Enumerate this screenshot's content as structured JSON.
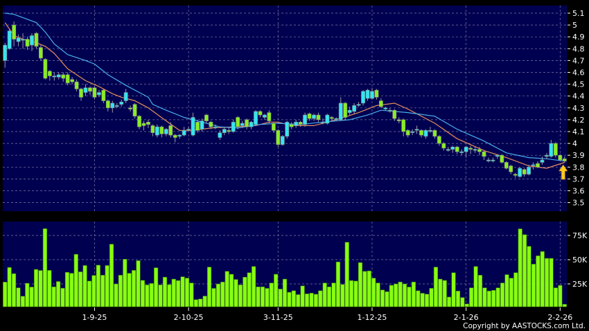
{
  "chart_data": [
    {
      "type": "candlestick",
      "title": "",
      "ylim": [
        3.45,
        5.15
      ],
      "y_ticks": [
        "5.1",
        "5",
        "4.9",
        "4.8",
        "4.7",
        "4.6",
        "4.5",
        "4.4",
        "4.3",
        "4.2",
        "4.1",
        "4",
        "3.9",
        "3.8",
        "3.7",
        "3.6",
        "3.5"
      ],
      "y_axis_position": "right",
      "grid": true,
      "colors": {
        "background": "#000050",
        "up": "#33e6f0",
        "down": "#88ee22",
        "ma_short": "#e8905a",
        "ma_long": "#4ab0f0",
        "grid": "#7a7aa8",
        "marker": "#ffc820"
      },
      "ohlc": [
        [
          4.7,
          4.85,
          4.64,
          4.83
        ],
        [
          4.8,
          4.97,
          4.79,
          4.95
        ],
        [
          5.0,
          5.03,
          4.82,
          4.88
        ],
        [
          4.86,
          4.92,
          4.82,
          4.89
        ],
        [
          4.88,
          4.93,
          4.8,
          4.88
        ],
        [
          4.88,
          4.9,
          4.79,
          4.82
        ],
        [
          4.83,
          4.93,
          4.78,
          4.91
        ],
        [
          4.93,
          4.94,
          4.8,
          4.82
        ],
        [
          4.81,
          4.83,
          4.7,
          4.72
        ],
        [
          4.71,
          4.72,
          4.54,
          4.55
        ],
        [
          4.61,
          4.62,
          4.53,
          4.57
        ],
        [
          4.57,
          4.6,
          4.53,
          4.57
        ],
        [
          4.56,
          4.6,
          4.54,
          4.58
        ],
        [
          4.58,
          4.6,
          4.52,
          4.55
        ],
        [
          4.58,
          4.6,
          4.49,
          4.51
        ],
        [
          4.54,
          4.56,
          4.5,
          4.52
        ],
        [
          4.52,
          4.54,
          4.44,
          4.46
        ],
        [
          4.46,
          4.47,
          4.36,
          4.39
        ],
        [
          4.43,
          4.5,
          4.4,
          4.47
        ],
        [
          4.47,
          4.48,
          4.41,
          4.44
        ],
        [
          4.47,
          4.48,
          4.37,
          4.39
        ],
        [
          4.41,
          4.45,
          4.39,
          4.43
        ],
        [
          4.45,
          4.46,
          4.34,
          4.36
        ],
        [
          4.36,
          4.37,
          4.27,
          4.3
        ],
        [
          4.3,
          4.36,
          4.26,
          4.34
        ],
        [
          4.32,
          4.34,
          4.3,
          4.32
        ],
        [
          4.33,
          4.37,
          4.31,
          4.35
        ],
        [
          4.36,
          4.46,
          4.34,
          4.43
        ],
        [
          4.3,
          4.32,
          4.27,
          4.29
        ],
        [
          4.33,
          4.34,
          4.21,
          4.23
        ],
        [
          4.23,
          4.24,
          4.12,
          4.14
        ],
        [
          4.17,
          4.19,
          4.11,
          4.15
        ],
        [
          4.18,
          4.2,
          4.13,
          4.16
        ],
        [
          4.15,
          4.16,
          4.06,
          4.09
        ],
        [
          4.07,
          4.16,
          4.05,
          4.14
        ],
        [
          4.14,
          4.15,
          4.05,
          4.08
        ],
        [
          4.08,
          4.13,
          4.06,
          4.12
        ],
        [
          4.15,
          4.18,
          4.05,
          4.07
        ],
        [
          4.07,
          4.08,
          4.01,
          4.05
        ],
        [
          4.06,
          4.08,
          4.04,
          4.07
        ],
        [
          4.07,
          4.14,
          4.06,
          4.11
        ],
        [
          4.12,
          4.14,
          4.1,
          4.12
        ],
        [
          4.07,
          4.26,
          4.06,
          4.22
        ],
        [
          4.18,
          4.2,
          4.09,
          4.11
        ],
        [
          4.12,
          4.21,
          4.1,
          4.19
        ],
        [
          4.24,
          4.25,
          4.17,
          4.19
        ],
        [
          4.18,
          4.19,
          4.12,
          4.14
        ],
        [
          4.14,
          4.16,
          4.12,
          4.14
        ],
        [
          4.05,
          4.11,
          4.03,
          4.09
        ],
        [
          4.09,
          4.14,
          4.07,
          4.12
        ],
        [
          4.11,
          4.13,
          4.08,
          4.1
        ],
        [
          4.1,
          4.2,
          4.09,
          4.18
        ],
        [
          4.22,
          4.23,
          4.12,
          4.14
        ],
        [
          4.15,
          4.19,
          4.13,
          4.17
        ],
        [
          4.2,
          4.21,
          4.12,
          4.14
        ],
        [
          4.14,
          4.19,
          4.12,
          4.18
        ],
        [
          4.16,
          4.28,
          4.15,
          4.27
        ],
        [
          4.27,
          4.28,
          4.22,
          4.24
        ],
        [
          4.22,
          4.25,
          4.2,
          4.24
        ],
        [
          4.26,
          4.28,
          4.17,
          4.19
        ],
        [
          4.17,
          4.18,
          4.09,
          4.11
        ],
        [
          4.11,
          4.12,
          3.97,
          3.99
        ],
        [
          3.99,
          4.07,
          3.98,
          4.06
        ],
        [
          4.06,
          4.19,
          4.04,
          4.18
        ],
        [
          4.16,
          4.18,
          4.12,
          4.14
        ],
        [
          4.15,
          4.2,
          4.13,
          4.18
        ],
        [
          4.18,
          4.19,
          4.14,
          4.16
        ],
        [
          4.16,
          4.26,
          4.14,
          4.24
        ],
        [
          4.25,
          4.26,
          4.19,
          4.21
        ],
        [
          4.21,
          4.25,
          4.19,
          4.24
        ],
        [
          4.24,
          4.26,
          4.18,
          4.2
        ],
        [
          4.18,
          4.21,
          4.16,
          4.18
        ],
        [
          4.17,
          4.25,
          4.16,
          4.24
        ],
        [
          4.22,
          4.23,
          4.19,
          4.21
        ],
        [
          4.2,
          4.22,
          4.19,
          4.21
        ],
        [
          4.2,
          4.39,
          4.19,
          4.34
        ],
        [
          4.34,
          4.35,
          4.2,
          4.22
        ],
        [
          4.26,
          4.31,
          4.24,
          4.28
        ],
        [
          4.27,
          4.34,
          4.25,
          4.32
        ],
        [
          4.33,
          4.35,
          4.31,
          4.33
        ],
        [
          4.34,
          4.45,
          4.32,
          4.44
        ],
        [
          4.38,
          4.46,
          4.36,
          4.45
        ],
        [
          4.38,
          4.47,
          4.37,
          4.44
        ],
        [
          4.45,
          4.46,
          4.37,
          4.39
        ],
        [
          4.36,
          4.38,
          4.3,
          4.31
        ],
        [
          4.29,
          4.31,
          4.28,
          4.3
        ],
        [
          4.28,
          4.3,
          4.26,
          4.28
        ],
        [
          4.28,
          4.29,
          4.19,
          4.21
        ],
        [
          4.2,
          4.22,
          4.17,
          4.19
        ],
        [
          4.2,
          4.21,
          4.06,
          4.1
        ],
        [
          4.11,
          4.12,
          4.05,
          4.07
        ],
        [
          4.1,
          4.12,
          4.07,
          4.1
        ],
        [
          4.12,
          4.15,
          4.08,
          4.12
        ],
        [
          4.11,
          4.12,
          4.05,
          4.07
        ],
        [
          4.06,
          4.12,
          4.04,
          4.11
        ],
        [
          4.11,
          4.14,
          4.09,
          4.11
        ],
        [
          4.11,
          4.12,
          4.04,
          4.06
        ],
        [
          4.06,
          4.07,
          3.98,
          4.0
        ],
        [
          4.0,
          4.01,
          3.94,
          3.96
        ],
        [
          3.95,
          3.97,
          3.93,
          3.95
        ],
        [
          3.95,
          3.98,
          3.92,
          3.97
        ],
        [
          3.97,
          3.98,
          3.91,
          3.93
        ],
        [
          3.93,
          3.95,
          3.9,
          3.93
        ],
        [
          3.93,
          3.98,
          3.88,
          3.97
        ],
        [
          3.96,
          3.98,
          3.91,
          3.95
        ],
        [
          3.95,
          3.97,
          3.92,
          3.95
        ],
        [
          3.95,
          3.97,
          3.9,
          3.93
        ],
        [
          3.93,
          3.94,
          3.86,
          3.89
        ],
        [
          3.86,
          3.88,
          3.84,
          3.86
        ],
        [
          3.86,
          3.88,
          3.84,
          3.86
        ],
        [
          3.89,
          3.91,
          3.87,
          3.9
        ],
        [
          3.9,
          3.91,
          3.83,
          3.84
        ],
        [
          3.84,
          3.85,
          3.78,
          3.79
        ],
        [
          3.81,
          3.82,
          3.74,
          3.76
        ],
        [
          3.74,
          3.75,
          3.71,
          3.73
        ],
        [
          3.72,
          3.8,
          3.71,
          3.79
        ],
        [
          3.78,
          3.79,
          3.72,
          3.74
        ],
        [
          3.74,
          3.82,
          3.73,
          3.8
        ],
        [
          3.82,
          3.84,
          3.78,
          3.82
        ],
        [
          3.83,
          3.85,
          3.79,
          3.8
        ],
        [
          3.84,
          3.89,
          3.82,
          3.86
        ],
        [
          3.89,
          3.92,
          3.87,
          3.9
        ],
        [
          3.89,
          4.03,
          3.88,
          4.0
        ],
        [
          4.0,
          4.01,
          3.88,
          3.9
        ],
        [
          3.9,
          3.91,
          3.85,
          3.86
        ],
        [
          3.87,
          3.89,
          3.84,
          3.85
        ]
      ],
      "ohlc_fields": [
        "open",
        "high",
        "low",
        "close"
      ],
      "ma_short": [
        [
          0,
          5.02
        ],
        [
          2,
          4.91
        ],
        [
          4,
          4.88
        ],
        [
          7,
          4.85
        ],
        [
          9,
          4.82
        ],
        [
          11,
          4.76
        ],
        [
          14,
          4.63
        ],
        [
          18,
          4.53
        ],
        [
          21,
          4.48
        ],
        [
          24,
          4.42
        ],
        [
          26,
          4.39
        ],
        [
          29,
          4.36
        ],
        [
          32,
          4.3
        ],
        [
          36,
          4.19
        ],
        [
          39,
          4.11
        ],
        [
          42,
          4.11
        ],
        [
          46,
          4.13
        ],
        [
          51,
          4.14
        ],
        [
          56,
          4.15
        ],
        [
          59,
          4.18
        ],
        [
          61,
          4.18
        ],
        [
          64,
          4.15
        ],
        [
          69,
          4.15
        ],
        [
          74,
          4.2
        ],
        [
          79,
          4.26
        ],
        [
          83,
          4.32
        ],
        [
          87,
          4.34
        ],
        [
          90,
          4.29
        ],
        [
          96,
          4.17
        ],
        [
          101,
          4.04
        ],
        [
          107,
          3.94
        ],
        [
          112,
          3.88
        ],
        [
          117,
          3.81
        ],
        [
          121,
          3.79
        ],
        [
          125,
          3.84
        ]
      ],
      "ma_long": [
        [
          0,
          5.1
        ],
        [
          2,
          5.09
        ],
        [
          7,
          5.02
        ],
        [
          9,
          4.94
        ],
        [
          11,
          4.84
        ],
        [
          14,
          4.75
        ],
        [
          18,
          4.7
        ],
        [
          20,
          4.67
        ],
        [
          23,
          4.58
        ],
        [
          27,
          4.49
        ],
        [
          32,
          4.39
        ],
        [
          33,
          4.33
        ],
        [
          36,
          4.28
        ],
        [
          40,
          4.22
        ],
        [
          44,
          4.18
        ],
        [
          48,
          4.14
        ],
        [
          52,
          4.13
        ],
        [
          57,
          4.16
        ],
        [
          61,
          4.17
        ],
        [
          66,
          4.16
        ],
        [
          71,
          4.18
        ],
        [
          77,
          4.2
        ],
        [
          81,
          4.24
        ],
        [
          84,
          4.28
        ],
        [
          90,
          4.26
        ],
        [
          96,
          4.23
        ],
        [
          101,
          4.12
        ],
        [
          107,
          4.02
        ],
        [
          112,
          3.92
        ],
        [
          117,
          3.88
        ],
        [
          121,
          3.87
        ],
        [
          125,
          3.85
        ]
      ],
      "marker": {
        "type": "up-arrow",
        "bar_index": 125
      }
    },
    {
      "type": "bar",
      "title": "",
      "unit": "K",
      "ylim": [
        0,
        87
      ],
      "y_ticks": [
        {
          "value": 75,
          "label": "75K"
        },
        {
          "value": 50,
          "label": "50K"
        },
        {
          "value": 25,
          "label": "25K"
        }
      ],
      "grid": true,
      "colors": {
        "bar": "#88ff11",
        "background": "#000050"
      },
      "values": [
        26.9,
        42,
        35.6,
        21,
        12.3,
        25.7,
        21.8,
        40,
        38.9,
        82,
        39,
        22,
        27.5,
        20.6,
        37,
        36,
        55.6,
        37.5,
        44,
        28,
        33.8,
        44.4,
        34,
        44,
        66,
        25,
        34,
        50.5,
        36,
        39,
        49,
        28.7,
        24,
        25.5,
        41.7,
        24,
        32,
        24.3,
        30,
        28.5,
        32.4,
        31,
        26,
        8.8,
        9.5,
        12.5,
        42.4,
        20.4,
        25,
        27,
        38,
        35,
        29.6,
        24,
        32,
        36.6,
        43,
        22,
        22,
        20.4,
        26,
        35,
        19.7,
        30,
        16.4,
        18,
        14,
        23,
        14.8,
        15.5,
        14.4,
        18,
        26,
        22,
        26,
        47.7,
        24.5,
        68,
        28.5,
        28,
        47,
        38,
        38.4,
        31,
        26,
        18.8,
        17,
        23.6,
        25,
        27,
        25,
        21.8,
        27,
        18,
        15.4,
        14.5,
        20.5,
        42.4,
        30,
        28.6,
        11.5,
        36.6,
        17.7,
        11,
        4.4,
        21,
        43,
        34,
        21,
        17.7,
        18.4,
        21,
        26,
        34.6,
        31,
        36.6,
        81.8,
        75.8,
        63.8,
        45.4,
        54,
        58.5,
        51.4,
        51.4,
        21,
        23.5,
        4
      ]
    }
  ],
  "x_axis": {
    "dates": [
      {
        "label": "1-9-25",
        "bar_index": 20
      },
      {
        "label": "2-10-25",
        "bar_index": 41
      },
      {
        "label": "3-11-25",
        "bar_index": 61
      },
      {
        "label": "1-12-25",
        "bar_index": 82
      },
      {
        "label": "2-1-26",
        "bar_index": 103
      },
      {
        "label": "2-2-26",
        "bar_index": 124
      }
    ]
  },
  "copyright": "Copyright by AASTOCKS.com Ltd."
}
